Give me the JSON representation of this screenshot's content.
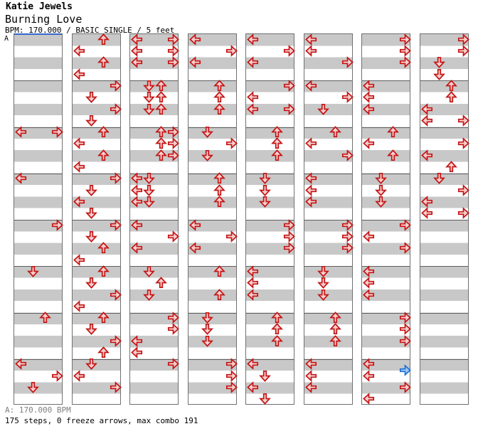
{
  "header": {
    "artist": "Katie Jewels",
    "title": "Burning Love",
    "info": "BPM: 170.000 / BASIC SINGLE / 5 feet"
  },
  "section_label": "A",
  "footer": {
    "bpm_line": "A: 170.000 BPM",
    "summary": "175 steps, 0 freeze arrows, max combo 191"
  },
  "colors": {
    "stripe_gray": "#c8c8c8",
    "panel_border": "#707070",
    "measure_line": "#5e5e5e",
    "note_fill": "#f7d0d0",
    "note_stroke": "#c41414",
    "eighth_fill": "#9dc8f4",
    "eighth_stroke": "#1e6fd0",
    "section_line_blue": "#3366cc",
    "footer_gray": "#7f7f7f"
  },
  "chart_data": {
    "type": "ddr-stepchart",
    "bpm": 170.0,
    "difficulty": "BASIC",
    "mode": "SINGLE",
    "feet": 5,
    "steps": 175,
    "freeze_arrows": 0,
    "max_combo": 191,
    "lanes": [
      "L",
      "D",
      "U",
      "R"
    ],
    "beats_per_measure": 4,
    "measures_per_column": 8,
    "note_legend": {
      "q": "quarter note (red)",
      "e": "eighth note (blue)"
    },
    "columns": [
      [
        {
          "m": 2,
          "b": 0,
          "d": "LR"
        },
        {
          "m": 3,
          "b": 0,
          "d": "L"
        },
        {
          "m": 4,
          "b": 0,
          "d": "R"
        },
        {
          "m": 5,
          "b": 0,
          "d": "D"
        },
        {
          "m": 6,
          "b": 0,
          "d": "U"
        },
        {
          "m": 7,
          "b": 0,
          "d": "L"
        },
        {
          "m": 7,
          "b": 1,
          "d": "R"
        },
        {
          "m": 7,
          "b": 2,
          "d": "D"
        }
      ],
      [
        {
          "m": 0,
          "b": 0,
          "d": "U"
        },
        {
          "m": 0,
          "b": 1,
          "d": "L"
        },
        {
          "m": 0,
          "b": 2,
          "d": "U"
        },
        {
          "m": 0,
          "b": 3,
          "d": "L"
        },
        {
          "m": 1,
          "b": 0,
          "d": "R"
        },
        {
          "m": 1,
          "b": 1,
          "d": "D"
        },
        {
          "m": 1,
          "b": 2,
          "d": "R"
        },
        {
          "m": 1,
          "b": 3,
          "d": "D"
        },
        {
          "m": 2,
          "b": 0,
          "d": "U"
        },
        {
          "m": 2,
          "b": 1,
          "d": "L"
        },
        {
          "m": 2,
          "b": 2,
          "d": "U"
        },
        {
          "m": 2,
          "b": 3,
          "d": "L"
        },
        {
          "m": 3,
          "b": 0,
          "d": "R"
        },
        {
          "m": 3,
          "b": 1,
          "d": "D"
        },
        {
          "m": 3,
          "b": 2,
          "d": "L"
        },
        {
          "m": 3,
          "b": 3,
          "d": "D"
        },
        {
          "m": 4,
          "b": 0,
          "d": "R"
        },
        {
          "m": 4,
          "b": 1,
          "d": "D"
        },
        {
          "m": 4,
          "b": 2,
          "d": "U"
        },
        {
          "m": 4,
          "b": 3,
          "d": "L"
        },
        {
          "m": 5,
          "b": 0,
          "d": "U"
        },
        {
          "m": 5,
          "b": 1,
          "d": "D"
        },
        {
          "m": 5,
          "b": 2,
          "d": "R"
        },
        {
          "m": 5,
          "b": 3,
          "d": "L"
        },
        {
          "m": 6,
          "b": 0,
          "d": "U"
        },
        {
          "m": 6,
          "b": 1,
          "d": "D"
        },
        {
          "m": 6,
          "b": 2,
          "d": "R"
        },
        {
          "m": 6,
          "b": 3,
          "d": "U"
        },
        {
          "m": 7,
          "b": 0,
          "d": "D"
        },
        {
          "m": 7,
          "b": 1,
          "d": "L"
        },
        {
          "m": 7,
          "b": 2,
          "d": "R"
        }
      ],
      [
        {
          "m": 0,
          "b": 0,
          "d": "LR"
        },
        {
          "m": 0,
          "b": 1,
          "d": "LR"
        },
        {
          "m": 0,
          "b": 2,
          "d": "LR"
        },
        {
          "m": 1,
          "b": 0,
          "d": "DU"
        },
        {
          "m": 1,
          "b": 1,
          "d": "DU"
        },
        {
          "m": 1,
          "b": 2,
          "d": "DU"
        },
        {
          "m": 2,
          "b": 0,
          "d": "UR"
        },
        {
          "m": 2,
          "b": 1,
          "d": "UR"
        },
        {
          "m": 2,
          "b": 2,
          "d": "UR"
        },
        {
          "m": 3,
          "b": 0,
          "d": "LD"
        },
        {
          "m": 3,
          "b": 1,
          "d": "LD"
        },
        {
          "m": 3,
          "b": 2,
          "d": "LD"
        },
        {
          "m": 4,
          "b": 0,
          "d": "L"
        },
        {
          "m": 4,
          "b": 1,
          "d": "R"
        },
        {
          "m": 4,
          "b": 2,
          "d": "L"
        },
        {
          "m": 5,
          "b": 0,
          "d": "D"
        },
        {
          "m": 5,
          "b": 1,
          "d": "U"
        },
        {
          "m": 5,
          "b": 2,
          "d": "D"
        },
        {
          "m": 6,
          "b": 0,
          "d": "R"
        },
        {
          "m": 6,
          "b": 1,
          "d": "R"
        },
        {
          "m": 6,
          "b": 2,
          "d": "L"
        },
        {
          "m": 6,
          "b": 3,
          "d": "L"
        },
        {
          "m": 7,
          "b": 0,
          "d": "R"
        }
      ],
      [
        {
          "m": 0,
          "b": 0,
          "d": "L"
        },
        {
          "m": 0,
          "b": 1,
          "d": "R"
        },
        {
          "m": 0,
          "b": 2,
          "d": "L"
        },
        {
          "m": 1,
          "b": 0,
          "d": "U"
        },
        {
          "m": 1,
          "b": 1,
          "d": "U"
        },
        {
          "m": 1,
          "b": 2,
          "d": "U"
        },
        {
          "m": 2,
          "b": 0,
          "d": "D"
        },
        {
          "m": 2,
          "b": 1,
          "d": "R"
        },
        {
          "m": 2,
          "b": 2,
          "d": "D"
        },
        {
          "m": 3,
          "b": 0,
          "d": "U"
        },
        {
          "m": 3,
          "b": 1,
          "d": "U"
        },
        {
          "m": 3,
          "b": 2,
          "d": "U"
        },
        {
          "m": 4,
          "b": 0,
          "d": "L"
        },
        {
          "m": 4,
          "b": 1,
          "d": "R"
        },
        {
          "m": 4,
          "b": 2,
          "d": "L"
        },
        {
          "m": 5,
          "b": 0,
          "d": "U"
        },
        {
          "m": 5,
          "b": 2,
          "d": "U"
        },
        {
          "m": 6,
          "b": 0,
          "d": "D"
        },
        {
          "m": 6,
          "b": 1,
          "d": "D"
        },
        {
          "m": 6,
          "b": 2,
          "d": "D"
        },
        {
          "m": 7,
          "b": 0,
          "d": "R"
        },
        {
          "m": 7,
          "b": 1,
          "d": "R"
        },
        {
          "m": 7,
          "b": 2,
          "d": "R"
        }
      ],
      [
        {
          "m": 0,
          "b": 0,
          "d": "L"
        },
        {
          "m": 0,
          "b": 1,
          "d": "R"
        },
        {
          "m": 0,
          "b": 2,
          "d": "L"
        },
        {
          "m": 1,
          "b": 0,
          "d": "R"
        },
        {
          "m": 1,
          "b": 1,
          "d": "L"
        },
        {
          "m": 1,
          "b": 2,
          "d": "LR"
        },
        {
          "m": 2,
          "b": 0,
          "d": "U"
        },
        {
          "m": 2,
          "b": 1,
          "d": "U"
        },
        {
          "m": 2,
          "b": 2,
          "d": "U"
        },
        {
          "m": 3,
          "b": 0,
          "d": "D"
        },
        {
          "m": 3,
          "b": 1,
          "d": "D"
        },
        {
          "m": 3,
          "b": 2,
          "d": "D"
        },
        {
          "m": 4,
          "b": 0,
          "d": "R"
        },
        {
          "m": 4,
          "b": 1,
          "d": "R"
        },
        {
          "m": 4,
          "b": 2,
          "d": "R"
        },
        {
          "m": 5,
          "b": 0,
          "d": "L"
        },
        {
          "m": 5,
          "b": 1,
          "d": "L"
        },
        {
          "m": 5,
          "b": 2,
          "d": "L"
        },
        {
          "m": 6,
          "b": 0,
          "d": "U"
        },
        {
          "m": 6,
          "b": 1,
          "d": "U"
        },
        {
          "m": 6,
          "b": 2,
          "d": "U"
        },
        {
          "m": 7,
          "b": 0,
          "d": "L"
        },
        {
          "m": 7,
          "b": 1,
          "d": "D"
        },
        {
          "m": 7,
          "b": 2,
          "d": "L"
        },
        {
          "m": 7,
          "b": 3,
          "d": "D"
        }
      ],
      [
        {
          "m": 0,
          "b": 0,
          "d": "L"
        },
        {
          "m": 0,
          "b": 1,
          "d": "L"
        },
        {
          "m": 0,
          "b": 2,
          "d": "R"
        },
        {
          "m": 1,
          "b": 0,
          "d": "L"
        },
        {
          "m": 1,
          "b": 1,
          "d": "R"
        },
        {
          "m": 1,
          "b": 2,
          "d": "D"
        },
        {
          "m": 2,
          "b": 0,
          "d": "U"
        },
        {
          "m": 2,
          "b": 1,
          "d": "L"
        },
        {
          "m": 2,
          "b": 2,
          "d": "R"
        },
        {
          "m": 3,
          "b": 0,
          "d": "L"
        },
        {
          "m": 3,
          "b": 1,
          "d": "L"
        },
        {
          "m": 3,
          "b": 2,
          "d": "L"
        },
        {
          "m": 4,
          "b": 0,
          "d": "R"
        },
        {
          "m": 4,
          "b": 1,
          "d": "R"
        },
        {
          "m": 4,
          "b": 2,
          "d": "R"
        },
        {
          "m": 5,
          "b": 0,
          "d": "D"
        },
        {
          "m": 5,
          "b": 1,
          "d": "D"
        },
        {
          "m": 5,
          "b": 2,
          "d": "D"
        },
        {
          "m": 6,
          "b": 0,
          "d": "U"
        },
        {
          "m": 6,
          "b": 1,
          "d": "U"
        },
        {
          "m": 6,
          "b": 2,
          "d": "U"
        },
        {
          "m": 7,
          "b": 0,
          "d": "L"
        },
        {
          "m": 7,
          "b": 1,
          "d": "L"
        },
        {
          "m": 7,
          "b": 2,
          "d": "L"
        }
      ],
      [
        {
          "m": 0,
          "b": 0,
          "d": "R"
        },
        {
          "m": 0,
          "b": 1,
          "d": "R"
        },
        {
          "m": 0,
          "b": 2,
          "d": "R"
        },
        {
          "m": 1,
          "b": 0,
          "d": "L"
        },
        {
          "m": 1,
          "b": 1,
          "d": "L"
        },
        {
          "m": 1,
          "b": 2,
          "d": "L"
        },
        {
          "m": 2,
          "b": 0,
          "d": "U"
        },
        {
          "m": 2,
          "b": 1,
          "d": "L"
        },
        {
          "m": 2,
          "b": 2,
          "d": "U"
        },
        {
          "m": 3,
          "b": 0,
          "d": "D"
        },
        {
          "m": 3,
          "b": 1,
          "d": "D"
        },
        {
          "m": 3,
          "b": 2,
          "d": "D"
        },
        {
          "m": 4,
          "b": 0,
          "d": "R"
        },
        {
          "m": 4,
          "b": 1,
          "d": "L"
        },
        {
          "m": 4,
          "b": 2,
          "d": "R"
        },
        {
          "m": 5,
          "b": 0,
          "d": "L"
        },
        {
          "m": 5,
          "b": 1,
          "d": "L"
        },
        {
          "m": 5,
          "b": 2,
          "d": "L"
        },
        {
          "m": 6,
          "b": 0,
          "d": "R"
        },
        {
          "m": 6,
          "b": 1,
          "d": "R"
        },
        {
          "m": 6,
          "b": 2,
          "d": "R"
        },
        {
          "m": 7,
          "b": 0,
          "d": "L"
        },
        {
          "m": 7,
          "b": 0.5,
          "d": "R",
          "t": "e"
        },
        {
          "m": 7,
          "b": 1,
          "d": "L"
        },
        {
          "m": 7,
          "b": 2,
          "d": "R"
        },
        {
          "m": 7,
          "b": 3,
          "d": "L"
        }
      ],
      [
        {
          "m": 0,
          "b": 0,
          "d": "R"
        },
        {
          "m": 0,
          "b": 1,
          "d": "R"
        },
        {
          "m": 0,
          "b": 2,
          "d": "D"
        },
        {
          "m": 0,
          "b": 3,
          "d": "D"
        },
        {
          "m": 1,
          "b": 0,
          "d": "U"
        },
        {
          "m": 1,
          "b": 1,
          "d": "U"
        },
        {
          "m": 1,
          "b": 2,
          "d": "L"
        },
        {
          "m": 1,
          "b": 3,
          "d": "LR"
        },
        {
          "m": 2,
          "b": 1,
          "d": "R"
        },
        {
          "m": 2,
          "b": 2,
          "d": "L"
        },
        {
          "m": 2,
          "b": 3,
          "d": "U"
        },
        {
          "m": 3,
          "b": 0,
          "d": "D"
        },
        {
          "m": 3,
          "b": 1,
          "d": "R"
        },
        {
          "m": 3,
          "b": 2,
          "d": "L"
        },
        {
          "m": 3,
          "b": 3,
          "d": "LR"
        }
      ]
    ]
  }
}
